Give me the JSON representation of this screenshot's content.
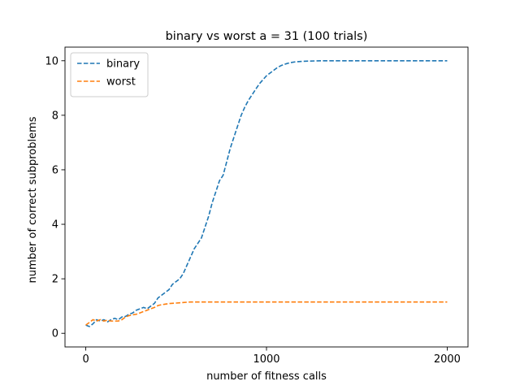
{
  "chart_data": {
    "type": "line",
    "title": "binary vs worst a = 31 (100 trials)",
    "xlabel": "number of fitness calls",
    "ylabel": "number of correct subproblems",
    "xlim": [
      -115,
      2115
    ],
    "ylim": [
      -0.5,
      10.5
    ],
    "xticks": [
      0,
      1000,
      2000
    ],
    "yticks": [
      0,
      2,
      4,
      6,
      8,
      10
    ],
    "grid": false,
    "legend": "top-left",
    "line_style": "dashed",
    "series": [
      {
        "name": "binary",
        "color": "#1f77b4",
        "points": [
          [
            0,
            0.3
          ],
          [
            20,
            0.25
          ],
          [
            40,
            0.35
          ],
          [
            60,
            0.5
          ],
          [
            80,
            0.45
          ],
          [
            100,
            0.5
          ],
          [
            120,
            0.42
          ],
          [
            140,
            0.5
          ],
          [
            160,
            0.55
          ],
          [
            180,
            0.5
          ],
          [
            200,
            0.6
          ],
          [
            220,
            0.62
          ],
          [
            240,
            0.7
          ],
          [
            260,
            0.75
          ],
          [
            280,
            0.85
          ],
          [
            300,
            0.9
          ],
          [
            320,
            0.95
          ],
          [
            340,
            0.9
          ],
          [
            360,
            1.0
          ],
          [
            380,
            1.1
          ],
          [
            400,
            1.3
          ],
          [
            420,
            1.4
          ],
          [
            440,
            1.5
          ],
          [
            460,
            1.6
          ],
          [
            480,
            1.8
          ],
          [
            500,
            1.9
          ],
          [
            520,
            2.0
          ],
          [
            540,
            2.2
          ],
          [
            560,
            2.5
          ],
          [
            580,
            2.8
          ],
          [
            600,
            3.1
          ],
          [
            620,
            3.3
          ],
          [
            640,
            3.5
          ],
          [
            660,
            3.9
          ],
          [
            680,
            4.3
          ],
          [
            700,
            4.8
          ],
          [
            720,
            5.2
          ],
          [
            740,
            5.6
          ],
          [
            760,
            5.8
          ],
          [
            780,
            6.3
          ],
          [
            800,
            6.8
          ],
          [
            820,
            7.2
          ],
          [
            840,
            7.6
          ],
          [
            860,
            8.0
          ],
          [
            880,
            8.3
          ],
          [
            900,
            8.55
          ],
          [
            920,
            8.75
          ],
          [
            940,
            8.95
          ],
          [
            960,
            9.15
          ],
          [
            980,
            9.3
          ],
          [
            1000,
            9.45
          ],
          [
            1020,
            9.55
          ],
          [
            1040,
            9.65
          ],
          [
            1060,
            9.75
          ],
          [
            1080,
            9.82
          ],
          [
            1100,
            9.87
          ],
          [
            1120,
            9.91
          ],
          [
            1140,
            9.94
          ],
          [
            1160,
            9.96
          ],
          [
            1180,
            9.97
          ],
          [
            1200,
            9.98
          ],
          [
            1300,
            10.0
          ],
          [
            1400,
            10.0
          ],
          [
            1500,
            10.0
          ],
          [
            1600,
            10.0
          ],
          [
            1700,
            10.0
          ],
          [
            1800,
            10.0
          ],
          [
            1900,
            10.0
          ],
          [
            2000,
            10.0
          ]
        ]
      },
      {
        "name": "worst",
        "color": "#ff7f0e",
        "points": [
          [
            0,
            0.3
          ],
          [
            20,
            0.4
          ],
          [
            40,
            0.5
          ],
          [
            60,
            0.45
          ],
          [
            80,
            0.5
          ],
          [
            100,
            0.45
          ],
          [
            120,
            0.48
          ],
          [
            140,
            0.45
          ],
          [
            160,
            0.45
          ],
          [
            180,
            0.45
          ],
          [
            200,
            0.5
          ],
          [
            220,
            0.6
          ],
          [
            240,
            0.65
          ],
          [
            260,
            0.68
          ],
          [
            280,
            0.7
          ],
          [
            300,
            0.75
          ],
          [
            320,
            0.8
          ],
          [
            340,
            0.85
          ],
          [
            360,
            0.9
          ],
          [
            380,
            0.95
          ],
          [
            400,
            1.02
          ],
          [
            420,
            1.05
          ],
          [
            440,
            1.07
          ],
          [
            460,
            1.09
          ],
          [
            480,
            1.1
          ],
          [
            500,
            1.11
          ],
          [
            520,
            1.12
          ],
          [
            540,
            1.13
          ],
          [
            560,
            1.14
          ],
          [
            580,
            1.15
          ],
          [
            600,
            1.15
          ],
          [
            700,
            1.15
          ],
          [
            800,
            1.15
          ],
          [
            1000,
            1.15
          ],
          [
            1200,
            1.15
          ],
          [
            1400,
            1.15
          ],
          [
            1600,
            1.15
          ],
          [
            1800,
            1.15
          ],
          [
            2000,
            1.15
          ]
        ]
      }
    ]
  }
}
